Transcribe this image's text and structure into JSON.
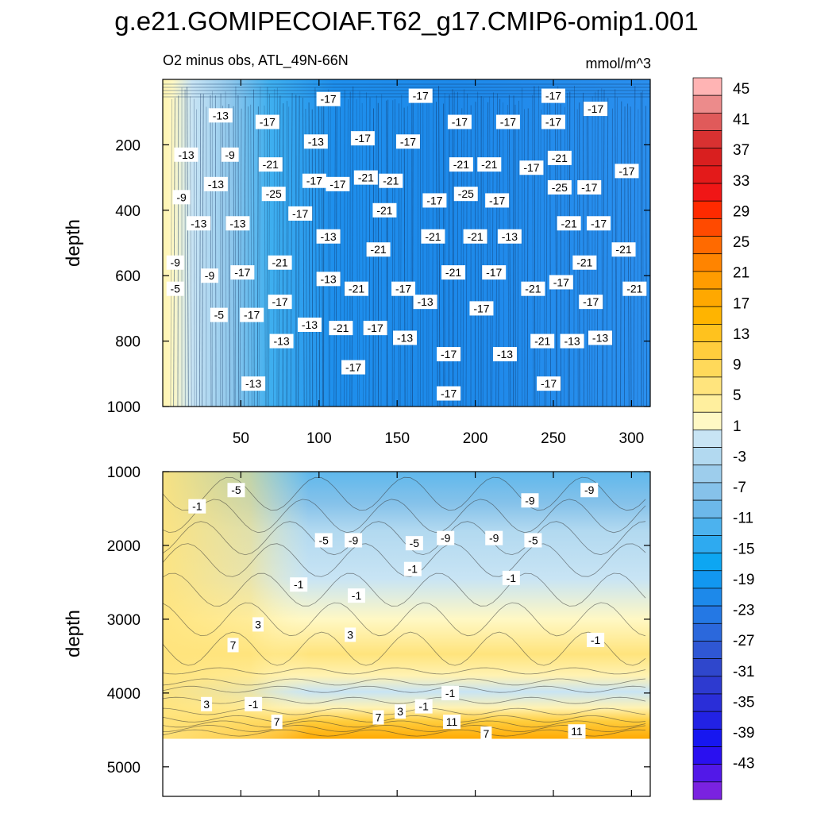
{
  "title": "g.e21.GOMIPECOIAF.T62_g17.CMIP6-omip1.001",
  "subtitle_left": "O2 minus obs, ATL_49N-66N",
  "subtitle_right": "mmol/m^3",
  "chart_data": [
    {
      "type": "heatmap",
      "panel": "upper",
      "xlabel": "",
      "ylabel": "depth",
      "xlim": [
        0,
        312
      ],
      "ylim": [
        1000,
        0
      ],
      "x_ticks": [
        50,
        100,
        150,
        200,
        250,
        300
      ],
      "y_ticks": [
        200,
        400,
        600,
        800,
        1000
      ],
      "contour_labels": [
        {
          "value": "-17",
          "x": 106,
          "depth": 60
        },
        {
          "value": "-17",
          "x": 165,
          "depth": 50
        },
        {
          "value": "-17",
          "x": 250,
          "depth": 50
        },
        {
          "value": "-17",
          "x": 277,
          "depth": 90
        },
        {
          "value": "-13",
          "x": 37,
          "depth": 110
        },
        {
          "value": "-17",
          "x": 67,
          "depth": 130
        },
        {
          "value": "-17",
          "x": 190,
          "depth": 130
        },
        {
          "value": "-17",
          "x": 221,
          "depth": 130
        },
        {
          "value": "-17",
          "x": 250,
          "depth": 130
        },
        {
          "value": "-13",
          "x": 15,
          "depth": 230
        },
        {
          "value": "-9",
          "x": 43,
          "depth": 230
        },
        {
          "value": "-13",
          "x": 98,
          "depth": 190
        },
        {
          "value": "-17",
          "x": 128,
          "depth": 180
        },
        {
          "value": "-17",
          "x": 157,
          "depth": 190
        },
        {
          "value": "-21",
          "x": 69,
          "depth": 260
        },
        {
          "value": "-21",
          "x": 191,
          "depth": 260
        },
        {
          "value": "-21",
          "x": 209,
          "depth": 260
        },
        {
          "value": "-21",
          "x": 254,
          "depth": 240
        },
        {
          "value": "-17",
          "x": 236,
          "depth": 270
        },
        {
          "value": "-17",
          "x": 297,
          "depth": 280
        },
        {
          "value": "-9",
          "x": 12,
          "depth": 360
        },
        {
          "value": "-13",
          "x": 34,
          "depth": 320
        },
        {
          "value": "-17",
          "x": 97,
          "depth": 310
        },
        {
          "value": "-17",
          "x": 112,
          "depth": 320
        },
        {
          "value": "-21",
          "x": 130,
          "depth": 300
        },
        {
          "value": "-21",
          "x": 146,
          "depth": 310
        },
        {
          "value": "-25",
          "x": 71,
          "depth": 350
        },
        {
          "value": "-25",
          "x": 194,
          "depth": 350
        },
        {
          "value": "-25",
          "x": 254,
          "depth": 330
        },
        {
          "value": "-17",
          "x": 273,
          "depth": 330
        },
        {
          "value": "-17",
          "x": 174,
          "depth": 370
        },
        {
          "value": "-17",
          "x": 214,
          "depth": 370
        },
        {
          "value": "-21",
          "x": 142,
          "depth": 400
        },
        {
          "value": "-17",
          "x": 88,
          "depth": 410
        },
        {
          "value": "-13",
          "x": 23,
          "depth": 440
        },
        {
          "value": "-13",
          "x": 48,
          "depth": 440
        },
        {
          "value": "-21",
          "x": 260,
          "depth": 440
        },
        {
          "value": "-17",
          "x": 279,
          "depth": 440
        },
        {
          "value": "-13",
          "x": 106,
          "depth": 480
        },
        {
          "value": "-21",
          "x": 173,
          "depth": 480
        },
        {
          "value": "-21",
          "x": 200,
          "depth": 480
        },
        {
          "value": "-13",
          "x": 222,
          "depth": 480
        },
        {
          "value": "-21",
          "x": 138,
          "depth": 520
        },
        {
          "value": "-21",
          "x": 295,
          "depth": 520
        },
        {
          "value": "-9",
          "x": 8,
          "depth": 560
        },
        {
          "value": "-21",
          "x": 75,
          "depth": 560
        },
        {
          "value": "-21",
          "x": 270,
          "depth": 560
        },
        {
          "value": "-17",
          "x": 51,
          "depth": 590
        },
        {
          "value": "-21",
          "x": 186,
          "depth": 590
        },
        {
          "value": "-17",
          "x": 212,
          "depth": 590
        },
        {
          "value": "-9",
          "x": 30,
          "depth": 600
        },
        {
          "value": "-13",
          "x": 106,
          "depth": 610
        },
        {
          "value": "-5",
          "x": 8,
          "depth": 640
        },
        {
          "value": "-21",
          "x": 124,
          "depth": 640
        },
        {
          "value": "-17",
          "x": 154,
          "depth": 640
        },
        {
          "value": "-21",
          "x": 237,
          "depth": 640
        },
        {
          "value": "-17",
          "x": 255,
          "depth": 620
        },
        {
          "value": "-21",
          "x": 302,
          "depth": 640
        },
        {
          "value": "-13",
          "x": 168,
          "depth": 680
        },
        {
          "value": "-17",
          "x": 75,
          "depth": 680
        },
        {
          "value": "-17",
          "x": 204,
          "depth": 700
        },
        {
          "value": "-17",
          "x": 274,
          "depth": 680
        },
        {
          "value": "-5",
          "x": 36,
          "depth": 720
        },
        {
          "value": "-17",
          "x": 57,
          "depth": 720
        },
        {
          "value": "-13",
          "x": 94,
          "depth": 750
        },
        {
          "value": "-21",
          "x": 114,
          "depth": 760
        },
        {
          "value": "-17",
          "x": 136,
          "depth": 760
        },
        {
          "value": "-13",
          "x": 76,
          "depth": 800
        },
        {
          "value": "-13",
          "x": 155,
          "depth": 790
        },
        {
          "value": "-21",
          "x": 243,
          "depth": 800
        },
        {
          "value": "-13",
          "x": 262,
          "depth": 800
        },
        {
          "value": "-13",
          "x": 280,
          "depth": 790
        },
        {
          "value": "-17",
          "x": 183,
          "depth": 840
        },
        {
          "value": "-13",
          "x": 219,
          "depth": 840
        },
        {
          "value": "-17",
          "x": 122,
          "depth": 880
        },
        {
          "value": "-13",
          "x": 58,
          "depth": 930
        },
        {
          "value": "-17",
          "x": 247,
          "depth": 930
        },
        {
          "value": "-17",
          "x": 183,
          "depth": 960
        }
      ]
    },
    {
      "type": "heatmap",
      "panel": "lower",
      "xlabel": "",
      "ylabel": "depth",
      "xlim": [
        0,
        312
      ],
      "ylim": [
        5400,
        1000
      ],
      "x_ticks": [
        50,
        100,
        150,
        200,
        250,
        300
      ],
      "y_ticks": [
        1000,
        2000,
        3000,
        4000,
        5000
      ],
      "bottom_depth": 4620,
      "contour_labels": [
        {
          "value": "-5",
          "x": 47,
          "depth": 1250
        },
        {
          "value": "-1",
          "x": 22,
          "depth": 1470
        },
        {
          "value": "-9",
          "x": 235,
          "depth": 1390
        },
        {
          "value": "-9",
          "x": 273,
          "depth": 1250
        },
        {
          "value": "-5",
          "x": 103,
          "depth": 1930
        },
        {
          "value": "-9",
          "x": 122,
          "depth": 1930
        },
        {
          "value": "-5",
          "x": 161,
          "depth": 1970
        },
        {
          "value": "-9",
          "x": 181,
          "depth": 1900
        },
        {
          "value": "-9",
          "x": 212,
          "depth": 1900
        },
        {
          "value": "-5",
          "x": 237,
          "depth": 1930
        },
        {
          "value": "-1",
          "x": 160,
          "depth": 2320
        },
        {
          "value": "-1",
          "x": 223,
          "depth": 2440
        },
        {
          "value": "-1",
          "x": 87,
          "depth": 2530
        },
        {
          "value": "-1",
          "x": 124,
          "depth": 2680
        },
        {
          "value": "3",
          "x": 61,
          "depth": 3070
        },
        {
          "value": "3",
          "x": 120,
          "depth": 3210
        },
        {
          "value": "7",
          "x": 45,
          "depth": 3350
        },
        {
          "value": "-1",
          "x": 277,
          "depth": 3280
        },
        {
          "value": "-1",
          "x": 184,
          "depth": 4000
        },
        {
          "value": "3",
          "x": 28,
          "depth": 4150
        },
        {
          "value": "-1",
          "x": 58,
          "depth": 4150
        },
        {
          "value": "-1",
          "x": 167,
          "depth": 4180
        },
        {
          "value": "3",
          "x": 152,
          "depth": 4250
        },
        {
          "value": "7",
          "x": 138,
          "depth": 4330
        },
        {
          "value": "7",
          "x": 73,
          "depth": 4390
        },
        {
          "value": "11",
          "x": 185,
          "depth": 4390
        },
        {
          "value": "11",
          "x": 265,
          "depth": 4520
        },
        {
          "value": "7",
          "x": 207,
          "depth": 4550
        }
      ]
    }
  ],
  "colorbar": {
    "labels": [
      "45",
      "41",
      "37",
      "33",
      "29",
      "25",
      "21",
      "17",
      "13",
      "9",
      "5",
      "1",
      "-3",
      "-7",
      "-11",
      "-15",
      "-19",
      "-23",
      "-27",
      "-31",
      "-35",
      "-39",
      "-43"
    ],
    "colors": [
      "#ffb4b4",
      "#ec8b8b",
      "#e05a5a",
      "#d83131",
      "#d91f1f",
      "#e31a1a",
      "#f01616",
      "#ff2a00",
      "#ff4a00",
      "#ff6a00",
      "#ff8400",
      "#ff9c00",
      "#ffa800",
      "#ffb400",
      "#ffc21e",
      "#ffcd3d",
      "#ffd95a",
      "#ffe47d",
      "#ffef9e",
      "#fff8c4",
      "#c8e4f4",
      "#b2d9f0",
      "#9dcdec",
      "#86c2ea",
      "#6cb8ea",
      "#4cb2ee",
      "#2eaaf0",
      "#0da6f2",
      "#1297f0",
      "#1d89ea",
      "#2478e4",
      "#2b68dc",
      "#2f57d4",
      "#2f47cc",
      "#2d3ad0",
      "#2a2ed8",
      "#2222e4",
      "#1717f0",
      "#2a10f0",
      "#5218e8",
      "#7a22e0"
    ]
  }
}
